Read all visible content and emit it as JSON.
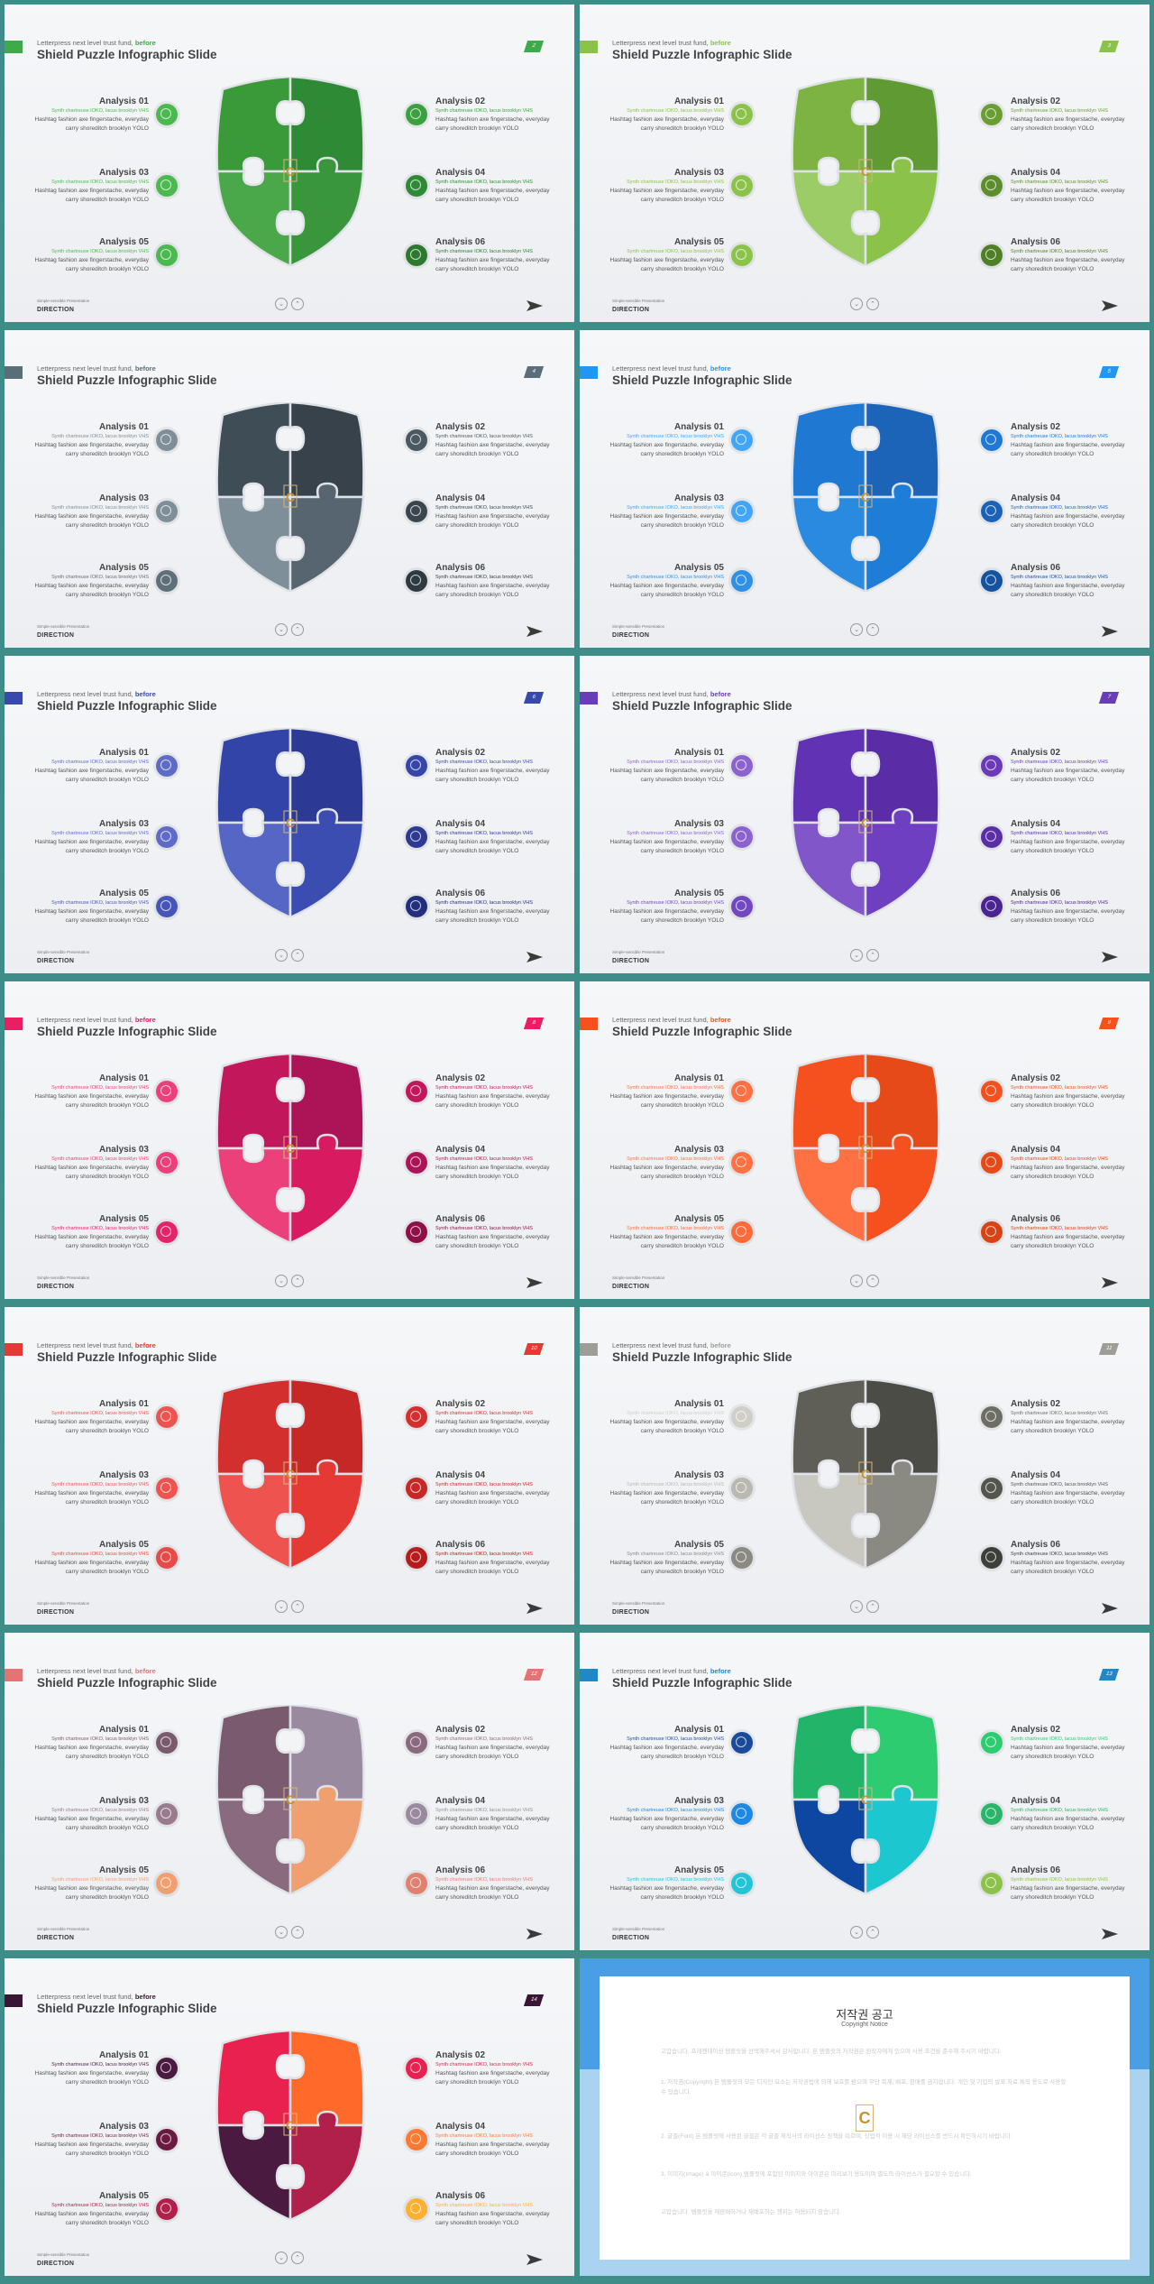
{
  "slide_template": {
    "lead_text": "Letterpress next level trust fund, ",
    "lead_highlight": "before",
    "title": "Shield Puzzle  Infographic Slide",
    "footer_caption": "Simple-sensible Presentation",
    "footer_label": "DIRECTION",
    "nav_prev_icon": "chevron-down-icon",
    "nav_next_icon": "chevron-up-icon",
    "send_icon": "paper-plane-icon",
    "items": [
      {
        "title": "Analysis 01",
        "sub": "Synth chartreuse IOKO, lacus brooklyn VHS",
        "body": "Hashtag fashion axe fingerstache, everyday carry shoreditch brooklyn YOLO"
      },
      {
        "title": "Analysis 02",
        "sub": "Synth chartreuse IOKO, lacus brooklyn VHS",
        "body": "Hashtag fashion axe fingerstache, everyday carry shoreditch brooklyn YOLO"
      },
      {
        "title": "Analysis 03",
        "sub": "Synth chartreuse IOKO, lacus brooklyn VHS",
        "body": "Hashtag fashion axe fingerstache, everyday carry shoreditch brooklyn YOLO"
      },
      {
        "title": "Analysis 04",
        "sub": "Synth chartreuse IOKO, lacus brooklyn VHS",
        "body": "Hashtag fashion axe fingerstache, everyday carry shoreditch brooklyn YOLO"
      },
      {
        "title": "Analysis 05",
        "sub": "Synth chartreuse IOKO, lacus brooklyn VHS",
        "body": "Hashtag fashion axe fingerstache, everyday carry shoreditch brooklyn YOLO"
      },
      {
        "title": "Analysis 06",
        "sub": "Synth chartreuse IOKO, lacus brooklyn VHS",
        "body": "Hashtag fashion axe fingerstache, everyday carry shoreditch brooklyn YOLO"
      }
    ]
  },
  "slides": [
    {
      "page": "2",
      "accent": "#3faa4a",
      "pieces": [
        "#3a9a3a",
        "#2f8a36",
        "#4aa84a",
        "#3a963c"
      ],
      "dots": [
        "#4cb850",
        "#3aa040",
        "#4cb850",
        "#2f8a36",
        "#4cb850",
        "#2c7a30"
      ]
    },
    {
      "page": "3",
      "accent": "#8bc34a",
      "pieces": [
        "#7cb342",
        "#5f9a32",
        "#9ccc65",
        "#8bc34a"
      ],
      "dots": [
        "#8bc34a",
        "#6a9e35",
        "#8bc34a",
        "#5c8f2c",
        "#8bc34a",
        "#4f7f26"
      ]
    },
    {
      "page": "4",
      "accent": "#5a6e7a",
      "pieces": [
        "#3f4d57",
        "#37424a",
        "#7e8f99",
        "#56656f"
      ],
      "dots": [
        "#7e8f99",
        "#4a5861",
        "#7e8f99",
        "#3a464e",
        "#5f6f79",
        "#2f3a40"
      ]
    },
    {
      "page": "5",
      "accent": "#2196f3",
      "pieces": [
        "#1f78d1",
        "#1b64b8",
        "#2a8ae0",
        "#1e7dd6"
      ],
      "dots": [
        "#42a5f5",
        "#1e78d4",
        "#42a5f5",
        "#1b62b6",
        "#2f90e6",
        "#1552a0"
      ]
    },
    {
      "page": "6",
      "accent": "#3949ab",
      "pieces": [
        "#3344a8",
        "#2c3a96",
        "#5566c4",
        "#3b4db0"
      ],
      "dots": [
        "#5e6cc8",
        "#3646a8",
        "#5e6cc8",
        "#2c3a92",
        "#4656b8",
        "#222e7e"
      ]
    },
    {
      "page": "7",
      "accent": "#6a3db8",
      "pieces": [
        "#6232b4",
        "#5a2ca6",
        "#8156c9",
        "#6e3fc0"
      ],
      "dots": [
        "#8b63cf",
        "#6a3ab8",
        "#8b63cf",
        "#5a2ea6",
        "#7148c0",
        "#4a2592"
      ]
    },
    {
      "page": "8",
      "accent": "#e91e63",
      "pieces": [
        "#c2185b",
        "#ad1457",
        "#ec407a",
        "#d81b60"
      ],
      "dots": [
        "#ec407a",
        "#c2185b",
        "#ec407a",
        "#ad1457",
        "#e22468",
        "#8e1047"
      ]
    },
    {
      "page": "9",
      "accent": "#f4511e",
      "pieces": [
        "#f4511e",
        "#e64a19",
        "#ff7043",
        "#f4511e"
      ],
      "dots": [
        "#ff7043",
        "#f4511e",
        "#ff7043",
        "#e64a19",
        "#ff6a3a",
        "#d84315"
      ]
    },
    {
      "page": "10",
      "accent": "#e53935",
      "pieces": [
        "#d32f2f",
        "#c62828",
        "#ef5350",
        "#e53935"
      ],
      "dots": [
        "#ef5350",
        "#d32f2f",
        "#ef5350",
        "#c62828",
        "#e84a47",
        "#b71c1c"
      ]
    },
    {
      "page": "11",
      "accent": "#9e9e96",
      "pieces": [
        "#5f5f58",
        "#4c4c46",
        "#c8c8c0",
        "#8a8a82"
      ],
      "dots": [
        "#cfcfc8",
        "#6e6e67",
        "#b9b9b2",
        "#55554f",
        "#8a8a82",
        "#3f3f3a"
      ]
    },
    {
      "page": "12",
      "accent": "#e57373",
      "pieces": [
        "#7a5a6e",
        "#9a8aa0",
        "#8a6a7e",
        "#f0a070"
      ],
      "dots": [
        "#7a5a6e",
        "#8a6a7e",
        "#9a7a8e",
        "#9a8aa0",
        "#f0a070",
        "#e08070"
      ]
    },
    {
      "page": "13",
      "accent": "#1e88c8",
      "pieces": [
        "#22b56a",
        "#2ecc71",
        "#0d47a1",
        "#1cc7d0"
      ],
      "dots": [
        "#1a4a9a",
        "#2ecc71",
        "#1e88e5",
        "#2ab56a",
        "#22c4d8",
        "#8bc34a"
      ]
    },
    {
      "page": "14",
      "accent": "#3a1535",
      "pieces": [
        "#e8214f",
        "#ff6a2a",
        "#4a1a40",
        "#b0204a"
      ],
      "dots": [
        "#4a1a40",
        "#e8214f",
        "#6a1a40",
        "#ff7a30",
        "#b0204a",
        "#ffb030"
      ]
    }
  ],
  "copyright": {
    "title": "저작권 공고",
    "subtitle": "Copyright Notice",
    "paragraphs": [
      "고맙습니다. 프레젠테이션 템플릿을 선택해주셔서 감사합니다. 본 템플릿의 저작권은 원작자에게 있으며 사용 조건을 준수해 주시기 바랍니다.",
      "1. 저작권(Copyright) 본 템플릿의 모든 디자인 요소는 저작권법에 의해 보호를 받으며 무단 복제, 배포, 판매를 금지합니다. 개인 및 기업의 발표 자료 제작 용도로 사용할 수 있습니다.",
      "2. 글꼴(Font) 본 템플릿에 사용된 글꼴은 각 글꼴 제작사의 라이선스 정책을 따르며, 상업적 이용 시 해당 라이선스를 반드시 확인하시기 바랍니다.",
      "3. 이미지(Image) & 아이콘(Icon) 템플릿에 포함된 이미지와 아이콘은 미리보기 용도이며 별도의 라이선스가 필요할 수 있습니다.",
      "고맙습니다. 템플릿을 재판매하거나 재배포하는 행위는 허용되지 않습니다."
    ],
    "logo_letter": "C"
  }
}
